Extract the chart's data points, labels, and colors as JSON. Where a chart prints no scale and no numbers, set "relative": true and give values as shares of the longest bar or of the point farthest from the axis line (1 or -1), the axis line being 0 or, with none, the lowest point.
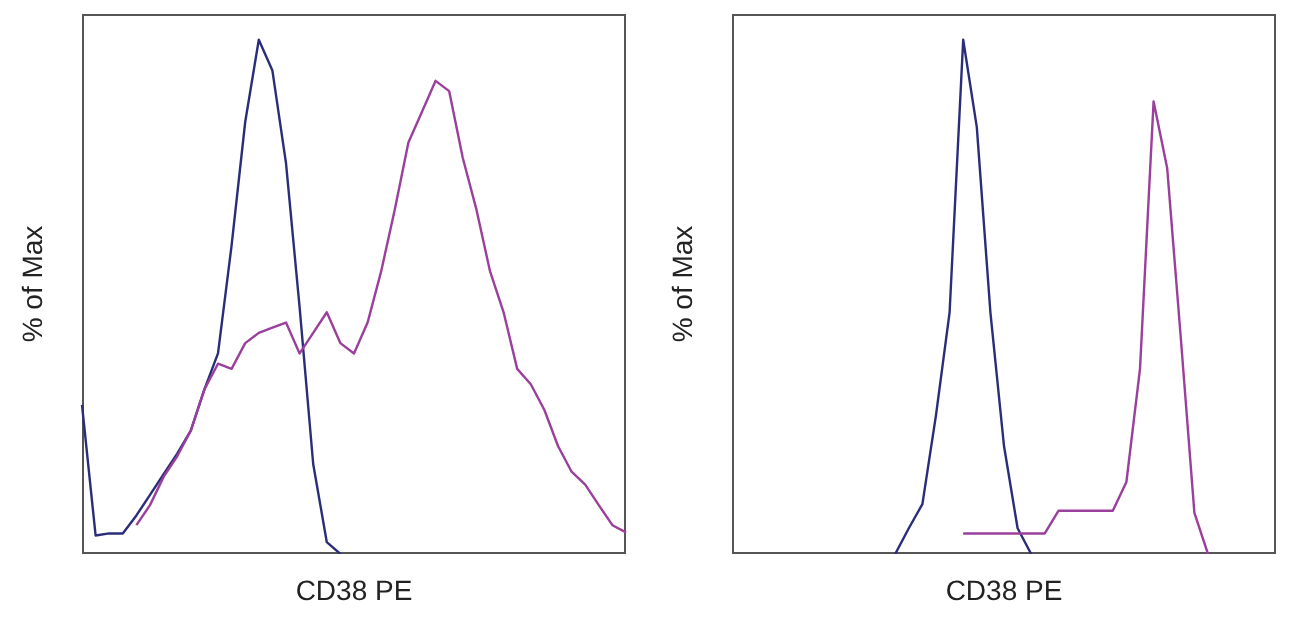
{
  "chart_data": [
    {
      "type": "line",
      "relative": true,
      "xlabel": "CD38 PE",
      "ylabel": "% of Max",
      "marker": "none",
      "categories": [
        null,
        null,
        null,
        null,
        null,
        null,
        null,
        null,
        null,
        null,
        null,
        null,
        null,
        null,
        null,
        null,
        null,
        null,
        null,
        null,
        null,
        null,
        null,
        null,
        null,
        null,
        null,
        null,
        null,
        null,
        null,
        null,
        null,
        null,
        null,
        null,
        null,
        null,
        null,
        null,
        null
      ],
      "series": [
        {
          "color": "#2b2d7a",
          "values": [
            0.29,
            0.036,
            0.04,
            0.04,
            0.075,
            0.115,
            0.155,
            0.195,
            0.24,
            0.32,
            0.39,
            0.6,
            0.84,
            1.0,
            0.94,
            0.76,
            0.48,
            0.175,
            0.023,
            0,
            null,
            null,
            null,
            null,
            null,
            null,
            null,
            null,
            null,
            null,
            null,
            null,
            null,
            null,
            null,
            null,
            null,
            null,
            null,
            null,
            null
          ]
        },
        {
          "color": "#9b3f9c",
          "values": [
            null,
            null,
            null,
            null,
            0.056,
            0.095,
            0.15,
            0.19,
            0.24,
            0.32,
            0.37,
            0.36,
            0.41,
            0.43,
            0.44,
            0.45,
            0.39,
            0.43,
            0.47,
            0.41,
            0.39,
            0.45,
            0.55,
            0.67,
            0.8,
            0.86,
            0.92,
            0.9,
            0.77,
            0.67,
            0.55,
            0.47,
            0.36,
            0.33,
            0.28,
            0.21,
            0.16,
            0.135,
            0.095,
            0.056,
            0.042
          ]
        }
      ]
    },
    {
      "type": "line",
      "relative": true,
      "xlabel": "CD38 PE",
      "ylabel": "% of Max",
      "marker": "none",
      "categories": [
        null,
        null,
        null,
        null,
        null,
        null,
        null,
        null,
        null,
        null,
        null,
        null,
        null,
        null,
        null,
        null,
        null,
        null,
        null,
        null,
        null,
        null,
        null,
        null,
        null,
        null,
        null,
        null,
        null,
        null,
        null,
        null,
        null,
        null,
        null,
        null,
        null,
        null,
        null,
        null,
        null
      ],
      "series": [
        {
          "color": "#2b2d7a",
          "values": [
            null,
            null,
            null,
            null,
            null,
            null,
            null,
            null,
            null,
            null,
            null,
            null,
            0,
            0.05,
            0.097,
            0.27,
            0.47,
            1.0,
            0.83,
            0.47,
            0.21,
            0.05,
            0,
            null,
            null,
            null,
            null,
            null,
            null,
            null,
            null,
            null,
            null,
            null,
            null,
            null,
            null,
            null,
            null,
            null,
            null
          ]
        },
        {
          "color": "#9b3f9c",
          "values": [
            null,
            null,
            null,
            null,
            null,
            null,
            null,
            null,
            null,
            null,
            null,
            null,
            null,
            null,
            null,
            null,
            null,
            0.04,
            0.04,
            0.04,
            0.04,
            0.04,
            0.04,
            0.04,
            0.084,
            0.084,
            0.084,
            0.084,
            0.084,
            0.14,
            0.36,
            0.88,
            0.75,
            0.42,
            0.08,
            0,
            null,
            null,
            null,
            null,
            null
          ]
        }
      ]
    }
  ]
}
